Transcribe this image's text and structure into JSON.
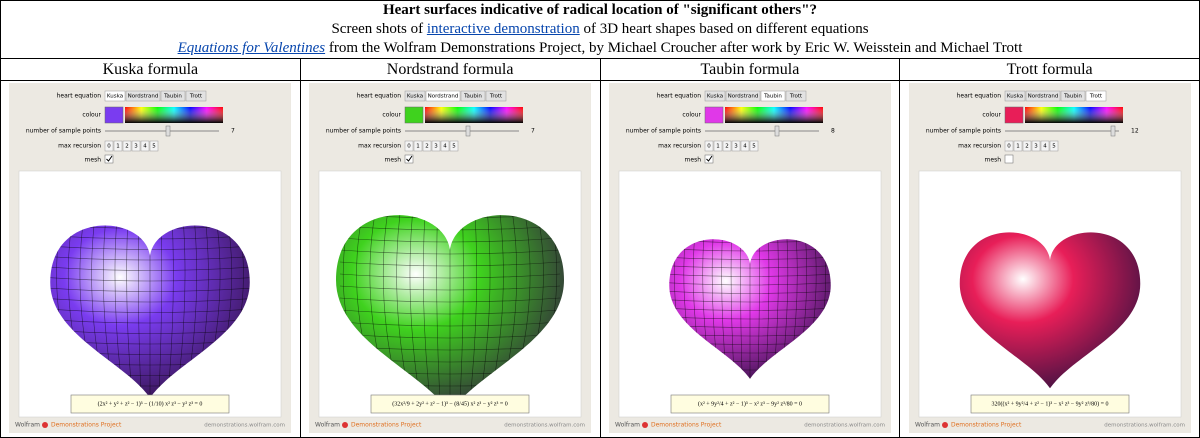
{
  "header": {
    "title": "Heart surfaces indicative of radical location of \"significant others\"?",
    "subtitle_before": "Screen shots of",
    "subtitle_link": "interactive demonstration",
    "subtitle_after": "of 3D heart shapes based on different equations",
    "credit_link": "Equations for Valentines",
    "credit_after": "from the Wolfram Demonstrations Project, by Michael Croucher after work by Eric W. Weisstein and Michael Trott"
  },
  "table": {
    "headers": [
      "Kuska formula",
      "Nordstrand formula",
      "Taubin formula",
      "Trott formula"
    ],
    "labels": {
      "heart_equation": "heart equation",
      "equations": [
        "Kuska",
        "Nordstrand",
        "Taubin",
        "Trott"
      ],
      "colour": "colour",
      "sample_points": "number of sample points",
      "max_recursion": "max recursion",
      "recursion_options": [
        "0",
        "1",
        "2",
        "3",
        "4",
        "5"
      ],
      "mesh": "mesh",
      "brand": "Wolfram",
      "project": "Demonstrations Project",
      "url": "demonstrations.wolfram.com"
    },
    "panels": [
      {
        "selected": 0,
        "sample_value": "7",
        "mesh": true,
        "color": "#7a3cf0",
        "formula": "(2x² + y² + z² − 1)³ − (1/10) x² z³ − y² z³ = 0"
      },
      {
        "selected": 1,
        "sample_value": "7",
        "mesh": true,
        "color": "#3fd21e",
        "formula": "(32x²/9 + 2y² + z² − 1)³ − (8/45) x² z³ − y² z³ = 0"
      },
      {
        "selected": 2,
        "sample_value": "8",
        "mesh": true,
        "color": "#e038e8",
        "formula": "(x² + 9y²/4 + z² − 1)³ − x² z³ − 9y² z³/80 = 0"
      },
      {
        "selected": 3,
        "sample_value": "12",
        "mesh": false,
        "color": "#e81e58",
        "formula": "320((x² + 9y²/4 + z² − 1)³ − x² z³ − 9y² z³/80) = 0"
      }
    ]
  }
}
